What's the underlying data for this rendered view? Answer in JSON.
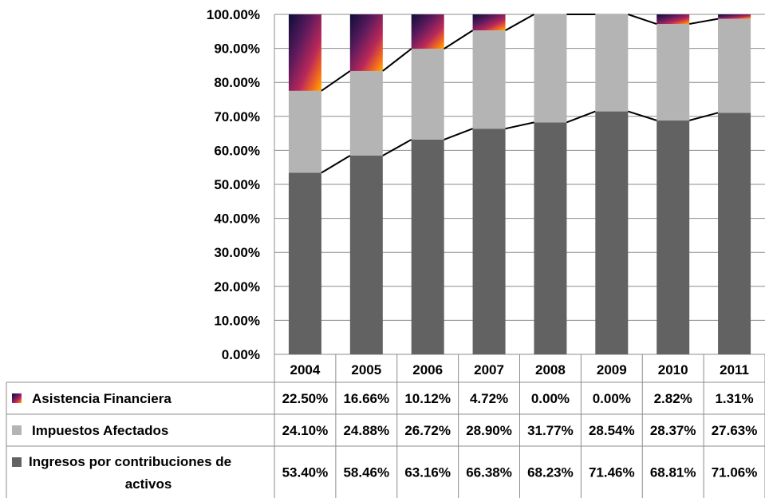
{
  "chart_data": {
    "type": "bar",
    "stacked": true,
    "percent": true,
    "categories": [
      "2004",
      "2005",
      "2006",
      "2007",
      "2008",
      "2009",
      "2010",
      "2011"
    ],
    "series": [
      {
        "name": "Ingresos  por contribuciones de activos",
        "values": [
          53.4,
          58.46,
          63.16,
          66.38,
          68.23,
          71.46,
          68.81,
          71.06
        ],
        "labels": [
          "53.40%",
          "58.46%",
          "63.16%",
          "66.38%",
          "68.23%",
          "71.46%",
          "68.81%",
          "71.06%"
        ],
        "legend_lines": [
          "Ingresos  por contribuciones de",
          "activos"
        ],
        "color": "#626262"
      },
      {
        "name": "Impuestos  Afectados",
        "values": [
          24.1,
          24.88,
          26.72,
          28.9,
          31.77,
          28.54,
          28.37,
          27.63
        ],
        "labels": [
          "24.10%",
          "24.88%",
          "26.72%",
          "28.90%",
          "31.77%",
          "28.54%",
          "28.37%",
          "27.63%"
        ],
        "legend_lines": [
          "Impuestos  Afectados"
        ],
        "color": "#b4b4b4"
      },
      {
        "name": "Asistencia  Financiera",
        "values": [
          22.5,
          16.66,
          10.12,
          4.72,
          0.0,
          0.0,
          2.82,
          1.31
        ],
        "labels": [
          "22.50%",
          "16.66%",
          "10.12%",
          "4.72%",
          "0.00%",
          "0.00%",
          "2.82%",
          "1.31%"
        ],
        "legend_lines": [
          "Asistencia  Financiera"
        ],
        "gradient": [
          "#0d0d3a",
          "#5a1a5c",
          "#b8285a",
          "#f26a1e",
          "#ffb000"
        ]
      }
    ],
    "y_ticks": [
      "0.00%",
      "10.00%",
      "20.00%",
      "30.00%",
      "40.00%",
      "50.00%",
      "60.00%",
      "70.00%",
      "80.00%",
      "90.00%",
      "100.00%"
    ],
    "ylim": [
      0,
      100
    ],
    "grid": true,
    "series_lines": true,
    "legend": "data-table"
  }
}
